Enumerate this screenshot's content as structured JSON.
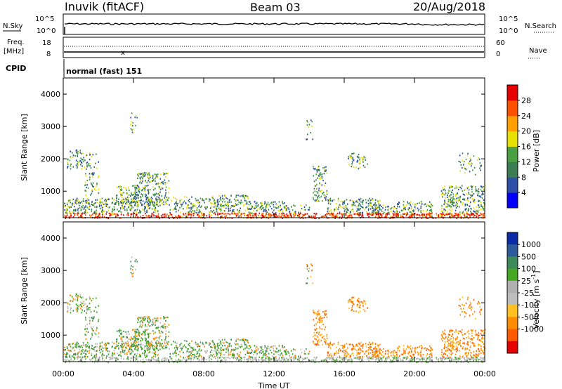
{
  "header": {
    "station": "Inuvik (fitACF)",
    "beam": "Beam 03",
    "date": "20/Aug/2018"
  },
  "panels": {
    "nsky_label": "N.Sky",
    "nsky_ticks": [
      "10^5",
      "10^0"
    ],
    "nsearch_label": "N.Search",
    "freq_label_line1": "Freq.",
    "freq_label_line2": "[MHz]",
    "freq_ticks": [
      "18",
      "8"
    ],
    "nave_ticks": [
      "60",
      "0"
    ],
    "nave_label": "Nave",
    "cpid_label": "CPID",
    "cpid_value": "normal (fast) 151"
  },
  "axes": {
    "slant_range_label": "Slant Range [km]",
    "slant_range_ticks": [
      "4000",
      "3000",
      "2000",
      "1000"
    ],
    "time_ticks": [
      "00:00",
      "04:00",
      "08:00",
      "12:00",
      "16:00",
      "20:00",
      "00:00"
    ],
    "time_label": "Time UT"
  },
  "colors": {
    "power": [
      "#0000ff",
      "#2e4fa8",
      "#3a7d52",
      "#49a040",
      "#e8e000",
      "#ffa000",
      "#ff5000",
      "#e60000"
    ],
    "velocity": [
      "#e60000",
      "#ff5a00",
      "#ff8c00",
      "#ffc020",
      "#bdbdbd",
      "#b0b0b0",
      "#44a820",
      "#3c8a5a",
      "#2c5a9a",
      "#0a2aa8"
    ]
  },
  "chart_data": [
    {
      "type": "heatmap",
      "title": "Power [dB]",
      "x_label": "Time UT",
      "y_label": "Slant Range [km]",
      "xlim": [
        "00:00",
        "24:00"
      ],
      "ylim": [
        180,
        4500
      ],
      "colorbar_label": "Power [dB]",
      "colorbar_ticks": [
        "28",
        "24",
        "20",
        "16",
        "12",
        "8",
        "4"
      ],
      "colorbar_range": [
        0,
        32
      ]
    },
    {
      "type": "heatmap",
      "title": "Velocity [m s-1]",
      "x_label": "Time UT",
      "y_label": "Slant Range [km]",
      "xlim": [
        "00:00",
        "24:00"
      ],
      "ylim": [
        180,
        4500
      ],
      "colorbar_label": "Velocity [m s-1]",
      "colorbar_label_main": "Velocity",
      "colorbar_label_unit": "[m s",
      "colorbar_label_exp": "-1",
      "colorbar_label_close": "]",
      "colorbar_ticks": [
        "1000",
        "500",
        "100",
        "25",
        "-25",
        "-100",
        "-500",
        "-1000"
      ]
    }
  ]
}
